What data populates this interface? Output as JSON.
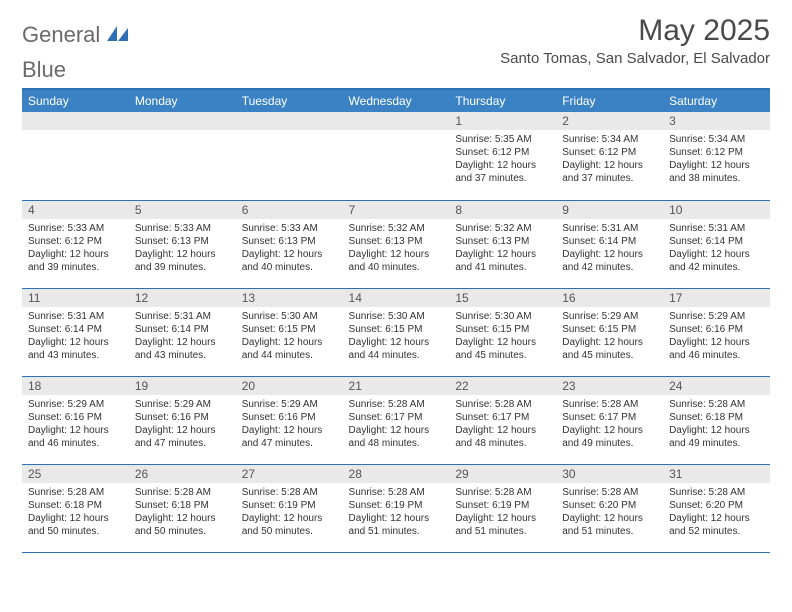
{
  "brand": {
    "part1": "General",
    "part2": "Blue"
  },
  "title": "May 2025",
  "location": "Santo Tomas, San Salvador, El Salvador",
  "colors": {
    "header_bg": "#3b82c4",
    "accent_line": "#2f6fb3",
    "daynum_bg": "#e9e9e9",
    "text": "#333333",
    "title_text": "#4a4a4a"
  },
  "typography": {
    "title_fontsize": 30,
    "location_fontsize": 15,
    "weekday_fontsize": 12,
    "body_fontsize": 10
  },
  "weekdays": [
    "Sunday",
    "Monday",
    "Tuesday",
    "Wednesday",
    "Thursday",
    "Friday",
    "Saturday"
  ],
  "weeks": [
    [
      {
        "empty": true
      },
      {
        "empty": true
      },
      {
        "empty": true
      },
      {
        "empty": true
      },
      {
        "day": "1",
        "sunrise": "Sunrise: 5:35 AM",
        "sunset": "Sunset: 6:12 PM",
        "daylight": "Daylight: 12 hours and 37 minutes."
      },
      {
        "day": "2",
        "sunrise": "Sunrise: 5:34 AM",
        "sunset": "Sunset: 6:12 PM",
        "daylight": "Daylight: 12 hours and 37 minutes."
      },
      {
        "day": "3",
        "sunrise": "Sunrise: 5:34 AM",
        "sunset": "Sunset: 6:12 PM",
        "daylight": "Daylight: 12 hours and 38 minutes."
      }
    ],
    [
      {
        "day": "4",
        "sunrise": "Sunrise: 5:33 AM",
        "sunset": "Sunset: 6:12 PM",
        "daylight": "Daylight: 12 hours and 39 minutes."
      },
      {
        "day": "5",
        "sunrise": "Sunrise: 5:33 AM",
        "sunset": "Sunset: 6:13 PM",
        "daylight": "Daylight: 12 hours and 39 minutes."
      },
      {
        "day": "6",
        "sunrise": "Sunrise: 5:33 AM",
        "sunset": "Sunset: 6:13 PM",
        "daylight": "Daylight: 12 hours and 40 minutes."
      },
      {
        "day": "7",
        "sunrise": "Sunrise: 5:32 AM",
        "sunset": "Sunset: 6:13 PM",
        "daylight": "Daylight: 12 hours and 40 minutes."
      },
      {
        "day": "8",
        "sunrise": "Sunrise: 5:32 AM",
        "sunset": "Sunset: 6:13 PM",
        "daylight": "Daylight: 12 hours and 41 minutes."
      },
      {
        "day": "9",
        "sunrise": "Sunrise: 5:31 AM",
        "sunset": "Sunset: 6:14 PM",
        "daylight": "Daylight: 12 hours and 42 minutes."
      },
      {
        "day": "10",
        "sunrise": "Sunrise: 5:31 AM",
        "sunset": "Sunset: 6:14 PM",
        "daylight": "Daylight: 12 hours and 42 minutes."
      }
    ],
    [
      {
        "day": "11",
        "sunrise": "Sunrise: 5:31 AM",
        "sunset": "Sunset: 6:14 PM",
        "daylight": "Daylight: 12 hours and 43 minutes."
      },
      {
        "day": "12",
        "sunrise": "Sunrise: 5:31 AM",
        "sunset": "Sunset: 6:14 PM",
        "daylight": "Daylight: 12 hours and 43 minutes."
      },
      {
        "day": "13",
        "sunrise": "Sunrise: 5:30 AM",
        "sunset": "Sunset: 6:15 PM",
        "daylight": "Daylight: 12 hours and 44 minutes."
      },
      {
        "day": "14",
        "sunrise": "Sunrise: 5:30 AM",
        "sunset": "Sunset: 6:15 PM",
        "daylight": "Daylight: 12 hours and 44 minutes."
      },
      {
        "day": "15",
        "sunrise": "Sunrise: 5:30 AM",
        "sunset": "Sunset: 6:15 PM",
        "daylight": "Daylight: 12 hours and 45 minutes."
      },
      {
        "day": "16",
        "sunrise": "Sunrise: 5:29 AM",
        "sunset": "Sunset: 6:15 PM",
        "daylight": "Daylight: 12 hours and 45 minutes."
      },
      {
        "day": "17",
        "sunrise": "Sunrise: 5:29 AM",
        "sunset": "Sunset: 6:16 PM",
        "daylight": "Daylight: 12 hours and 46 minutes."
      }
    ],
    [
      {
        "day": "18",
        "sunrise": "Sunrise: 5:29 AM",
        "sunset": "Sunset: 6:16 PM",
        "daylight": "Daylight: 12 hours and 46 minutes."
      },
      {
        "day": "19",
        "sunrise": "Sunrise: 5:29 AM",
        "sunset": "Sunset: 6:16 PM",
        "daylight": "Daylight: 12 hours and 47 minutes."
      },
      {
        "day": "20",
        "sunrise": "Sunrise: 5:29 AM",
        "sunset": "Sunset: 6:16 PM",
        "daylight": "Daylight: 12 hours and 47 minutes."
      },
      {
        "day": "21",
        "sunrise": "Sunrise: 5:28 AM",
        "sunset": "Sunset: 6:17 PM",
        "daylight": "Daylight: 12 hours and 48 minutes."
      },
      {
        "day": "22",
        "sunrise": "Sunrise: 5:28 AM",
        "sunset": "Sunset: 6:17 PM",
        "daylight": "Daylight: 12 hours and 48 minutes."
      },
      {
        "day": "23",
        "sunrise": "Sunrise: 5:28 AM",
        "sunset": "Sunset: 6:17 PM",
        "daylight": "Daylight: 12 hours and 49 minutes."
      },
      {
        "day": "24",
        "sunrise": "Sunrise: 5:28 AM",
        "sunset": "Sunset: 6:18 PM",
        "daylight": "Daylight: 12 hours and 49 minutes."
      }
    ],
    [
      {
        "day": "25",
        "sunrise": "Sunrise: 5:28 AM",
        "sunset": "Sunset: 6:18 PM",
        "daylight": "Daylight: 12 hours and 50 minutes."
      },
      {
        "day": "26",
        "sunrise": "Sunrise: 5:28 AM",
        "sunset": "Sunset: 6:18 PM",
        "daylight": "Daylight: 12 hours and 50 minutes."
      },
      {
        "day": "27",
        "sunrise": "Sunrise: 5:28 AM",
        "sunset": "Sunset: 6:19 PM",
        "daylight": "Daylight: 12 hours and 50 minutes."
      },
      {
        "day": "28",
        "sunrise": "Sunrise: 5:28 AM",
        "sunset": "Sunset: 6:19 PM",
        "daylight": "Daylight: 12 hours and 51 minutes."
      },
      {
        "day": "29",
        "sunrise": "Sunrise: 5:28 AM",
        "sunset": "Sunset: 6:19 PM",
        "daylight": "Daylight: 12 hours and 51 minutes."
      },
      {
        "day": "30",
        "sunrise": "Sunrise: 5:28 AM",
        "sunset": "Sunset: 6:20 PM",
        "daylight": "Daylight: 12 hours and 51 minutes."
      },
      {
        "day": "31",
        "sunrise": "Sunrise: 5:28 AM",
        "sunset": "Sunset: 6:20 PM",
        "daylight": "Daylight: 12 hours and 52 minutes."
      }
    ]
  ]
}
